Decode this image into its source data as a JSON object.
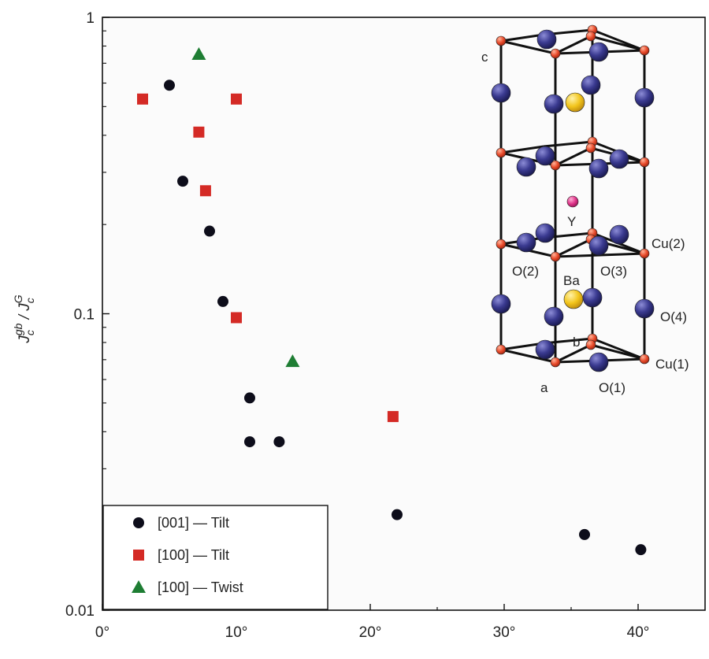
{
  "chart_data": {
    "type": "scatter",
    "title": "",
    "xlabel": "",
    "ylabel_parts": [
      "J",
      "c",
      "gb",
      " / J",
      "c",
      "G"
    ],
    "xlim": [
      0,
      45
    ],
    "ylim": [
      0.01,
      1
    ],
    "y_scale": "log",
    "x_ticks": [
      0,
      10,
      20,
      30,
      40
    ],
    "x_tick_labels": [
      "0°",
      "10°",
      "20°",
      "30°",
      "40°"
    ],
    "y_ticks": [
      0.01,
      0.1,
      1
    ],
    "y_tick_labels": [
      "0.01",
      "0.1",
      "1"
    ],
    "grid": false,
    "legend_position": "bottom-left",
    "series": [
      {
        "name": "[001] — Tilt",
        "marker": "circle",
        "color": "#0d0d1a",
        "points": [
          {
            "x": 5,
            "y": 0.59
          },
          {
            "x": 6,
            "y": 0.28
          },
          {
            "x": 8,
            "y": 0.19
          },
          {
            "x": 9,
            "y": 0.11
          },
          {
            "x": 11,
            "y": 0.052
          },
          {
            "x": 11,
            "y": 0.037
          },
          {
            "x": 13.2,
            "y": 0.037
          },
          {
            "x": 22,
            "y": 0.021
          },
          {
            "x": 36,
            "y": 0.018
          },
          {
            "x": 40.2,
            "y": 0.016
          }
        ]
      },
      {
        "name": "[100] — Tilt",
        "marker": "square",
        "color": "#d42a25",
        "points": [
          {
            "x": 3,
            "y": 0.53
          },
          {
            "x": 7.2,
            "y": 0.41
          },
          {
            "x": 10,
            "y": 0.53
          },
          {
            "x": 7.7,
            "y": 0.26
          },
          {
            "x": 10,
            "y": 0.097
          },
          {
            "x": 21.7,
            "y": 0.045
          }
        ]
      },
      {
        "name": "[100] — Twist",
        "marker": "triangle",
        "color": "#1e7d33",
        "points": [
          {
            "x": 7.2,
            "y": 0.75
          },
          {
            "x": 14.2,
            "y": 0.069
          }
        ]
      }
    ]
  },
  "inset": {
    "labels": {
      "c": "c",
      "a": "a",
      "b": "b",
      "y": "Y",
      "ba": "Ba",
      "o1": "O(1)",
      "o2": "O(2)",
      "o3": "O(3)",
      "o4": "O(4)",
      "cu1": "Cu(1)",
      "cu2": "Cu(2)"
    },
    "colors": {
      "cu": "#e84a2a",
      "o": "#3a3a90",
      "ba": "#f2c51c",
      "y": "#e0358a",
      "bond": "#111111"
    }
  }
}
